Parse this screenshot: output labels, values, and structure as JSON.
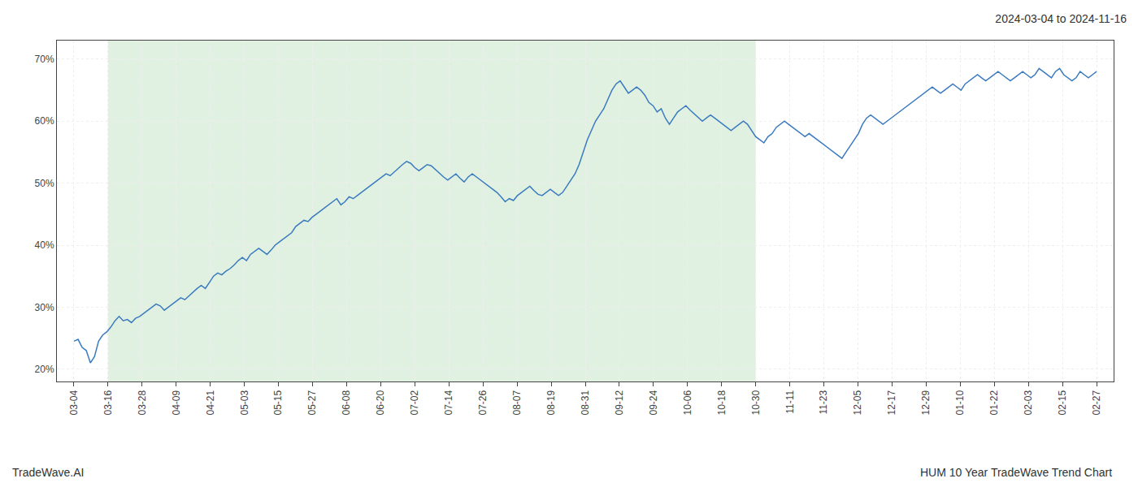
{
  "chart_data": {
    "type": "line",
    "title": "2024-03-04 to 2024-11-16",
    "annotations": [
      "TradeWave.AI",
      "HUM 10 Year TradeWave Trend Chart"
    ],
    "color": "#3a7abf",
    "grid": true,
    "xlim": [
      -0.5,
      30.5
    ],
    "xticks": [
      {
        "value": 0,
        "label": "03-04"
      },
      {
        "value": 1,
        "label": "03-16"
      },
      {
        "value": 2,
        "label": "03-28"
      },
      {
        "value": 3,
        "label": "04-09"
      },
      {
        "value": 4,
        "label": "04-21"
      },
      {
        "value": 5,
        "label": "05-03"
      },
      {
        "value": 6,
        "label": "05-15"
      },
      {
        "value": 7,
        "label": "05-27"
      },
      {
        "value": 8,
        "label": "06-08"
      },
      {
        "value": 9,
        "label": "06-20"
      },
      {
        "value": 10,
        "label": "07-02"
      },
      {
        "value": 11,
        "label": "07-14"
      },
      {
        "value": 12,
        "label": "07-26"
      },
      {
        "value": 13,
        "label": "08-07"
      },
      {
        "value": 14,
        "label": "08-19"
      },
      {
        "value": 15,
        "label": "08-31"
      },
      {
        "value": 16,
        "label": "09-12"
      },
      {
        "value": 17,
        "label": "09-24"
      },
      {
        "value": 18,
        "label": "10-06"
      },
      {
        "value": 19,
        "label": "10-18"
      },
      {
        "value": 20,
        "label": "10-30"
      },
      {
        "value": 21,
        "label": "11-11"
      },
      {
        "value": 22,
        "label": "11-23"
      },
      {
        "value": 23,
        "label": "12-05"
      },
      {
        "value": 24,
        "label": "12-17"
      },
      {
        "value": 25,
        "label": "12-29"
      },
      {
        "value": 26,
        "label": "01-10"
      },
      {
        "value": 27,
        "label": "01-22"
      },
      {
        "value": 28,
        "label": "02-03"
      },
      {
        "value": 29,
        "label": "02-15"
      },
      {
        "value": 30,
        "label": "02-27"
      }
    ],
    "ylim": [
      18,
      73
    ],
    "yticks": [
      {
        "value": 20,
        "label": "20%"
      },
      {
        "value": 30,
        "label": "30%"
      },
      {
        "value": 40,
        "label": "40%"
      },
      {
        "value": 50,
        "label": "50%"
      },
      {
        "value": 60,
        "label": "60%"
      },
      {
        "value": 70,
        "label": "70%"
      }
    ],
    "shaded": {
      "x": [
        1,
        20
      ],
      "color": "#c8e6c8"
    },
    "values": [
      24.5,
      24.8,
      23.5,
      23.0,
      21.0,
      22.0,
      24.5,
      25.5,
      26.0,
      26.8,
      27.8,
      28.5,
      27.8,
      28.0,
      27.5,
      28.2,
      28.5,
      29.0,
      29.5,
      30.0,
      30.5,
      30.2,
      29.5,
      30.0,
      30.5,
      31.0,
      31.5,
      31.2,
      31.8,
      32.5,
      33.0,
      33.5,
      33.0,
      34.0,
      35.0,
      35.5,
      35.2,
      35.8,
      36.2,
      36.8,
      37.5,
      38.0,
      37.5,
      38.5,
      39.0,
      39.5,
      39.0,
      38.5,
      39.2,
      40.0,
      40.5,
      41.0,
      41.5,
      42.0,
      43.0,
      43.5,
      44.0,
      43.8,
      44.5,
      45.0,
      45.5,
      46.0,
      46.5,
      47.0,
      47.5,
      46.5,
      47.0,
      47.8,
      47.5,
      48.0,
      48.5,
      49.0,
      49.5,
      50.0,
      50.5,
      51.0,
      51.5,
      51.2,
      51.8,
      52.5,
      53.0,
      53.5,
      53.2,
      52.5,
      52.0,
      52.5,
      53.0,
      52.8,
      52.2,
      51.5,
      51.0,
      50.5,
      51.0,
      51.5,
      50.8,
      50.2,
      51.0,
      51.5,
      51.0,
      50.5,
      50.0,
      49.5,
      49.0,
      48.5,
      47.8,
      47.0,
      47.5,
      47.2,
      48.0,
      48.5,
      49.0,
      49.5,
      48.8,
      48.2,
      48.0,
      48.5,
      49.0,
      48.5,
      48.0,
      48.5,
      49.5,
      50.5,
      51.5,
      53.0,
      55.0,
      57.0,
      58.5,
      60.0,
      61.0,
      62.0,
      63.5,
      65.0,
      66.0,
      66.5,
      65.5,
      64.5,
      65.0,
      65.5,
      65.0,
      64.2,
      63.0,
      62.5,
      61.5,
      62.0,
      60.5,
      59.5,
      60.5,
      61.5,
      62.0,
      62.5,
      61.8,
      61.2,
      60.5,
      60.0,
      60.5,
      61.0,
      60.5,
      60.0,
      59.5,
      59.0,
      58.5,
      59.0,
      59.5,
      60.0,
      59.5,
      58.5,
      57.5,
      57.0,
      56.5,
      57.5,
      58.0,
      59.0,
      59.5,
      60.0,
      59.5,
      59.0,
      58.5,
      58.0,
      57.5,
      58.0,
      57.5,
      57.0,
      56.5,
      56.0,
      55.5,
      55.0,
      54.5,
      54.0,
      55.0,
      56.0,
      57.0,
      58.0,
      59.5,
      60.5,
      61.0,
      60.5,
      60.0,
      59.5,
      60.0,
      60.5,
      61.0,
      61.5,
      62.0,
      62.5,
      63.0,
      63.5,
      64.0,
      64.5,
      65.0,
      65.5,
      65.0,
      64.5,
      65.0,
      65.5,
      66.0,
      65.5,
      65.0,
      66.0,
      66.5,
      67.0,
      67.5,
      67.0,
      66.5,
      67.0,
      67.5,
      68.0,
      67.5,
      67.0,
      66.5,
      67.0,
      67.5,
      68.0,
      67.5,
      67.0,
      67.5,
      68.5,
      68.0,
      67.5,
      67.0,
      68.0,
      68.5,
      67.5,
      67.0,
      66.5,
      67.0,
      68.0,
      67.5,
      67.0,
      67.5,
      68.0
    ]
  }
}
